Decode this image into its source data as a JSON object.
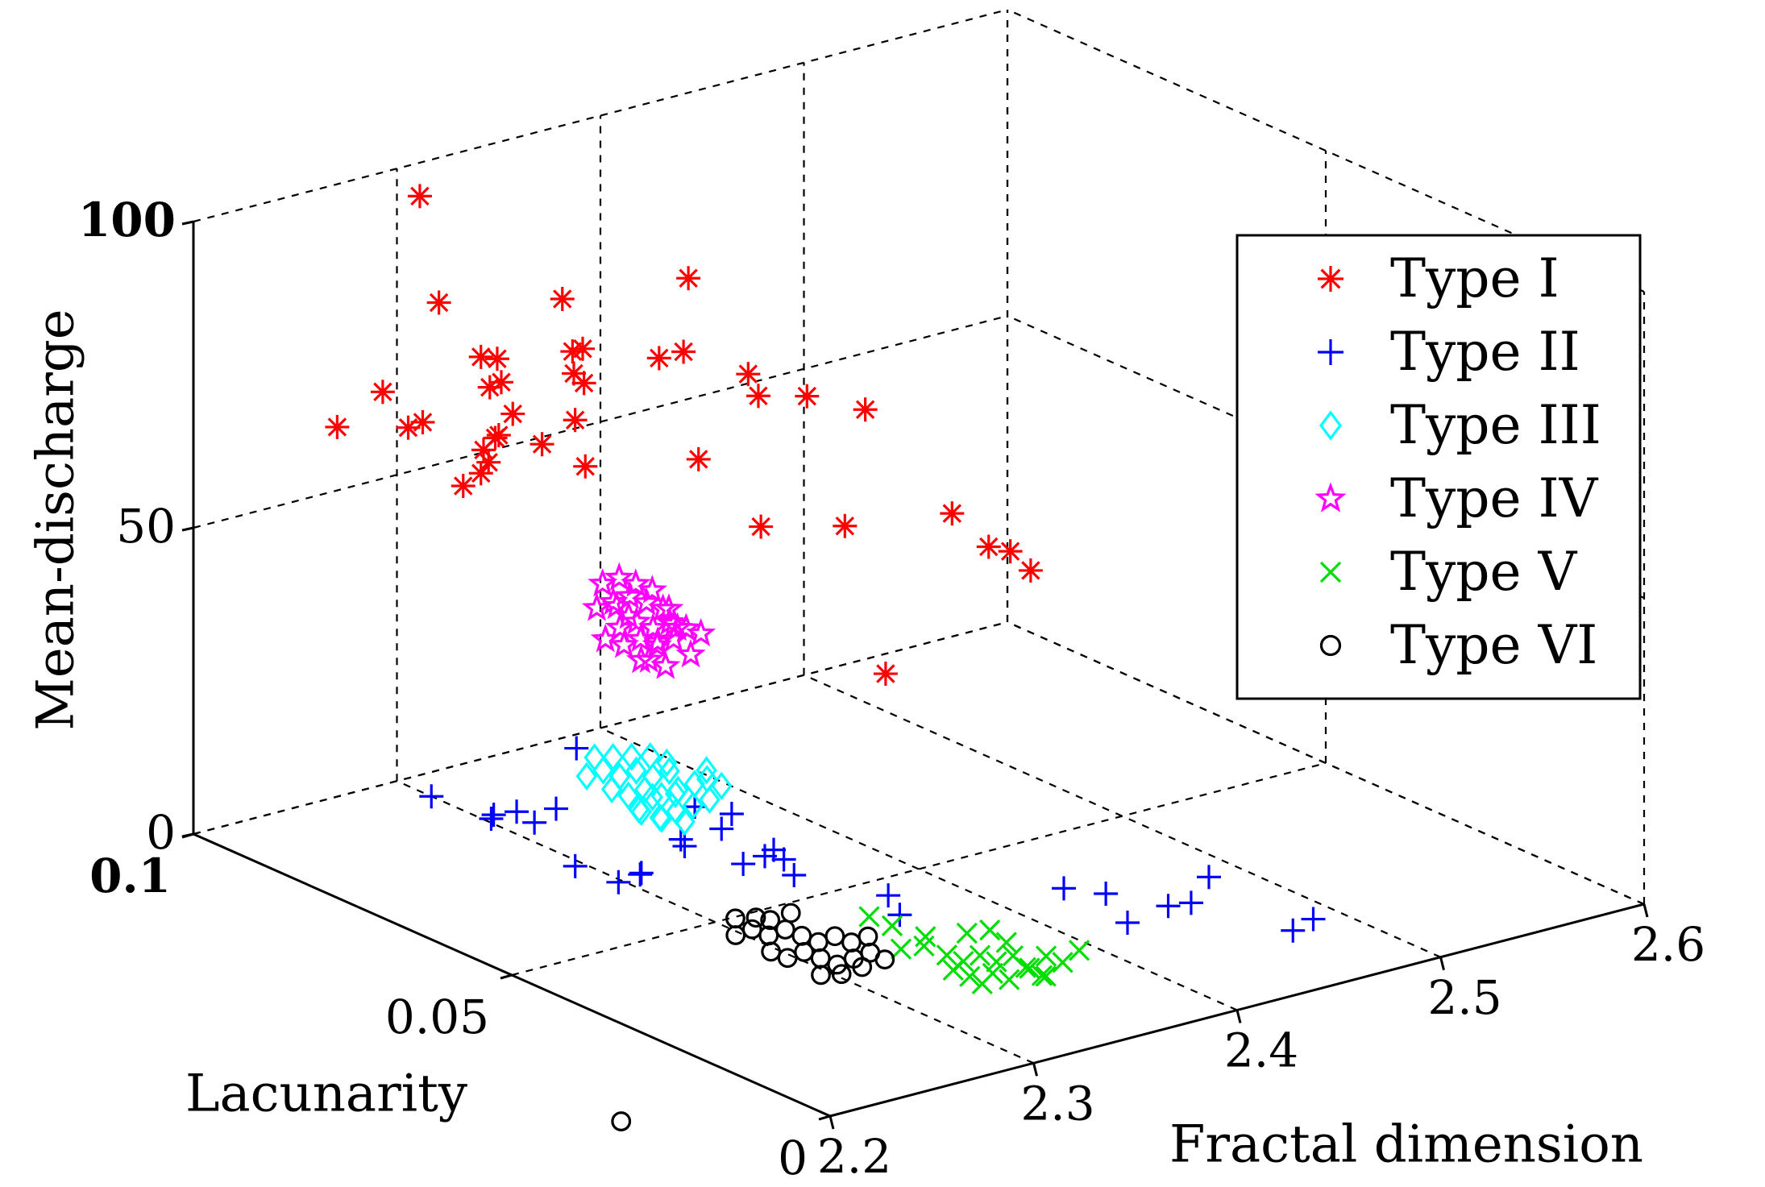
{
  "chart_data": {
    "type": "scatter",
    "dimensions": 3,
    "title": "",
    "xlabel": "Fractal dimension",
    "ylabel": "Lacunarity",
    "zlabel": "Mean-discharge",
    "xlim": [
      2.2,
      2.6
    ],
    "ylim": [
      0,
      0.1
    ],
    "zlim": [
      0,
      100
    ],
    "x_ticks": [
      "2.2",
      "2.3",
      "2.4",
      "2.5",
      "2.6"
    ],
    "y_ticks": [
      "0",
      "0.05",
      "0.1"
    ],
    "z_ticks": [
      "0",
      "50",
      "100"
    ],
    "grid": true,
    "legend_position": "top-right",
    "series": [
      {
        "name": "Type I",
        "marker": "asterisk",
        "color": "#ff0000",
        "points": [
          [
            2.255,
            0.095,
            64
          ],
          [
            2.268,
            0.092,
            70
          ],
          [
            2.268,
            0.088,
            66
          ],
          [
            2.272,
            0.087,
            67
          ],
          [
            2.28,
            0.08,
            65
          ],
          [
            2.292,
            0.082,
            65
          ],
          [
            2.27,
            0.08,
            60
          ],
          [
            2.305,
            0.095,
            80
          ],
          [
            2.318,
            0.09,
            72
          ],
          [
            2.32,
            0.09,
            68
          ],
          [
            2.31,
            0.09,
            73
          ],
          [
            2.325,
            0.08,
            66
          ],
          [
            2.31,
            0.085,
            66
          ],
          [
            2.315,
            0.082,
            62
          ],
          [
            2.31,
            0.09,
            54
          ],
          [
            2.32,
            0.092,
            54
          ],
          [
            2.325,
            0.092,
            58
          ],
          [
            2.33,
            0.095,
            64
          ],
          [
            2.34,
            0.085,
            70
          ],
          [
            2.345,
            0.085,
            68
          ],
          [
            2.36,
            0.078,
            74
          ],
          [
            2.35,
            0.09,
            79
          ],
          [
            2.355,
            0.09,
            70
          ],
          [
            2.36,
            0.09,
            70
          ],
          [
            2.365,
            0.075,
            88
          ],
          [
            2.372,
            0.078,
            74
          ],
          [
            2.385,
            0.072,
            72
          ],
          [
            2.39,
            0.072,
            68
          ],
          [
            2.392,
            0.065,
            71
          ],
          [
            2.405,
            0.06,
            70
          ],
          [
            2.33,
            0.08,
            58
          ],
          [
            2.37,
            0.075,
            58
          ],
          [
            2.385,
            0.07,
            48
          ],
          [
            2.42,
            0.068,
            46
          ],
          [
            2.432,
            0.055,
            53
          ],
          [
            2.445,
            0.05,
            48
          ],
          [
            2.45,
            0.055,
            46
          ],
          [
            2.455,
            0.05,
            44
          ],
          [
            2.415,
            0.06,
            26
          ],
          [
            2.305,
            0.098,
            96
          ]
        ]
      },
      {
        "name": "Type II",
        "marker": "plus",
        "color": "#0000ff",
        "points": [
          [
            2.27,
            0.085,
            7
          ],
          [
            2.285,
            0.08,
            5
          ],
          [
            2.29,
            0.078,
            6
          ],
          [
            2.3,
            0.075,
            7
          ],
          [
            2.29,
            0.082,
            3
          ],
          [
            2.305,
            0.08,
            2
          ],
          [
            2.31,
            0.075,
            16
          ],
          [
            2.3,
            0.072,
            -1
          ],
          [
            2.315,
            0.07,
            -4
          ],
          [
            2.32,
            0.068,
            -2
          ],
          [
            2.33,
            0.065,
            4
          ],
          [
            2.335,
            0.066,
            2
          ],
          [
            2.34,
            0.066,
            8
          ],
          [
            2.35,
            0.065,
            4
          ],
          [
            2.355,
            0.065,
            6
          ],
          [
            2.345,
            0.06,
            1
          ],
          [
            2.36,
            0.06,
            2
          ],
          [
            2.365,
            0.06,
            0
          ],
          [
            2.31,
            0.065,
            0
          ],
          [
            2.34,
            0.055,
            5
          ],
          [
            2.37,
            0.06,
            -3
          ],
          [
            2.385,
            0.05,
            -3
          ],
          [
            2.375,
            0.045,
            -3
          ],
          [
            2.44,
            0.04,
            -2
          ],
          [
            2.46,
            0.03,
            -2
          ],
          [
            2.445,
            0.035,
            -1
          ],
          [
            2.44,
            0.03,
            -3
          ],
          [
            2.465,
            0.028,
            -1
          ],
          [
            2.48,
            0.03,
            1
          ],
          [
            2.49,
            0.02,
            -4
          ],
          [
            2.5,
            0.02,
            -3
          ]
        ]
      },
      {
        "name": "Type III",
        "marker": "diamond",
        "color": "#00ffff",
        "points": [
          [
            2.315,
            0.075,
            11
          ],
          [
            2.32,
            0.074,
            12
          ],
          [
            2.325,
            0.073,
            11
          ],
          [
            2.33,
            0.072,
            12
          ],
          [
            2.335,
            0.071,
            11
          ],
          [
            2.34,
            0.07,
            12
          ],
          [
            2.318,
            0.072,
            10
          ],
          [
            2.323,
            0.071,
            9
          ],
          [
            2.328,
            0.07,
            10
          ],
          [
            2.333,
            0.069,
            9
          ],
          [
            2.338,
            0.068,
            10
          ],
          [
            2.343,
            0.067,
            11
          ],
          [
            2.32,
            0.068,
            8
          ],
          [
            2.326,
            0.067,
            7
          ],
          [
            2.331,
            0.066,
            8
          ],
          [
            2.336,
            0.065,
            9
          ],
          [
            2.341,
            0.064,
            10
          ],
          [
            2.346,
            0.066,
            12
          ],
          [
            2.35,
            0.065,
            11
          ],
          [
            2.322,
            0.076,
            13
          ],
          [
            2.328,
            0.075,
            13
          ],
          [
            2.334,
            0.074,
            13
          ],
          [
            2.34,
            0.073,
            13
          ],
          [
            2.345,
            0.072,
            12
          ],
          [
            2.33,
            0.068,
            6
          ],
          [
            2.335,
            0.066,
            6
          ],
          [
            2.325,
            0.07,
            7
          ],
          [
            2.352,
            0.068,
            12
          ],
          [
            2.343,
            0.07,
            8
          ],
          [
            2.338,
            0.072,
            7
          ]
        ]
      },
      {
        "name": "Type IV",
        "marker": "star",
        "color": "#ff00ff",
        "points": [
          [
            2.32,
            0.075,
            38
          ],
          [
            2.325,
            0.074,
            39
          ],
          [
            2.33,
            0.073,
            40
          ],
          [
            2.335,
            0.072,
            39
          ],
          [
            2.34,
            0.071,
            38
          ],
          [
            2.322,
            0.072,
            36
          ],
          [
            2.327,
            0.071,
            37
          ],
          [
            2.332,
            0.07,
            36
          ],
          [
            2.337,
            0.069,
            37
          ],
          [
            2.342,
            0.068,
            36
          ],
          [
            2.318,
            0.073,
            34
          ],
          [
            2.324,
            0.072,
            33
          ],
          [
            2.329,
            0.071,
            34
          ],
          [
            2.334,
            0.07,
            33
          ],
          [
            2.339,
            0.069,
            34
          ],
          [
            2.344,
            0.07,
            35
          ],
          [
            2.326,
            0.076,
            41
          ],
          [
            2.331,
            0.075,
            42
          ],
          [
            2.336,
            0.074,
            41
          ],
          [
            2.341,
            0.073,
            40
          ],
          [
            2.33,
            0.07,
            31
          ],
          [
            2.335,
            0.069,
            30
          ],
          [
            2.323,
            0.069,
            32
          ],
          [
            2.346,
            0.072,
            37
          ],
          [
            2.338,
            0.066,
            33
          ],
          [
            2.328,
            0.068,
            35
          ],
          [
            2.333,
            0.067,
            38
          ],
          [
            2.32,
            0.07,
            39
          ],
          [
            2.343,
            0.066,
            36
          ],
          [
            2.336,
            0.077,
            36
          ]
        ]
      },
      {
        "name": "Type V",
        "marker": "x",
        "color": "#00dd00",
        "points": [
          [
            2.36,
            0.04,
            -5
          ],
          [
            2.365,
            0.038,
            -4
          ],
          [
            2.37,
            0.036,
            -5
          ],
          [
            2.375,
            0.035,
            -6
          ],
          [
            2.38,
            0.034,
            -5
          ],
          [
            2.385,
            0.033,
            -6
          ],
          [
            2.39,
            0.032,
            -5
          ],
          [
            2.37,
            0.035,
            -7
          ],
          [
            2.375,
            0.034,
            -8
          ],
          [
            2.38,
            0.032,
            -7
          ],
          [
            2.385,
            0.031,
            -8
          ],
          [
            2.39,
            0.03,
            -6
          ],
          [
            2.395,
            0.031,
            -7
          ],
          [
            2.4,
            0.03,
            -5
          ],
          [
            2.405,
            0.029,
            -6
          ],
          [
            2.41,
            0.028,
            -4
          ],
          [
            2.36,
            0.045,
            -2
          ],
          [
            2.365,
            0.043,
            -3
          ],
          [
            2.372,
            0.04,
            -4
          ],
          [
            2.383,
            0.037,
            -3
          ],
          [
            2.393,
            0.034,
            -4
          ],
          [
            2.398,
            0.03,
            -8
          ],
          [
            2.403,
            0.031,
            -9
          ],
          [
            2.378,
            0.033,
            -9
          ],
          [
            2.388,
            0.035,
            -2
          ]
        ]
      },
      {
        "name": "Type VI",
        "marker": "circle",
        "color": "#000000",
        "points": [
          [
            2.31,
            0.05,
            -3
          ],
          [
            2.315,
            0.049,
            -2
          ],
          [
            2.32,
            0.048,
            -3
          ],
          [
            2.325,
            0.047,
            -2
          ],
          [
            2.33,
            0.046,
            -3
          ],
          [
            2.335,
            0.045,
            -4
          ],
          [
            2.34,
            0.044,
            -3
          ],
          [
            2.345,
            0.043,
            -4
          ],
          [
            2.35,
            0.042,
            -3
          ],
          [
            2.318,
            0.047,
            -5
          ],
          [
            2.323,
            0.046,
            -6
          ],
          [
            2.328,
            0.045,
            -5
          ],
          [
            2.333,
            0.044,
            -6
          ],
          [
            2.338,
            0.043,
            -7
          ],
          [
            2.343,
            0.042,
            -6
          ],
          [
            2.348,
            0.041,
            -5
          ],
          [
            2.313,
            0.051,
            -1
          ],
          [
            2.32,
            0.05,
            -1
          ],
          [
            2.327,
            0.05,
            -2
          ],
          [
            2.334,
            0.049,
            -1
          ],
          [
            2.33,
            0.043,
            -8
          ],
          [
            2.337,
            0.042,
            -8
          ],
          [
            2.344,
            0.041,
            -7
          ],
          [
            2.352,
            0.04,
            -6
          ],
          [
            2.26,
            0.052,
            -30
          ]
        ]
      }
    ]
  }
}
